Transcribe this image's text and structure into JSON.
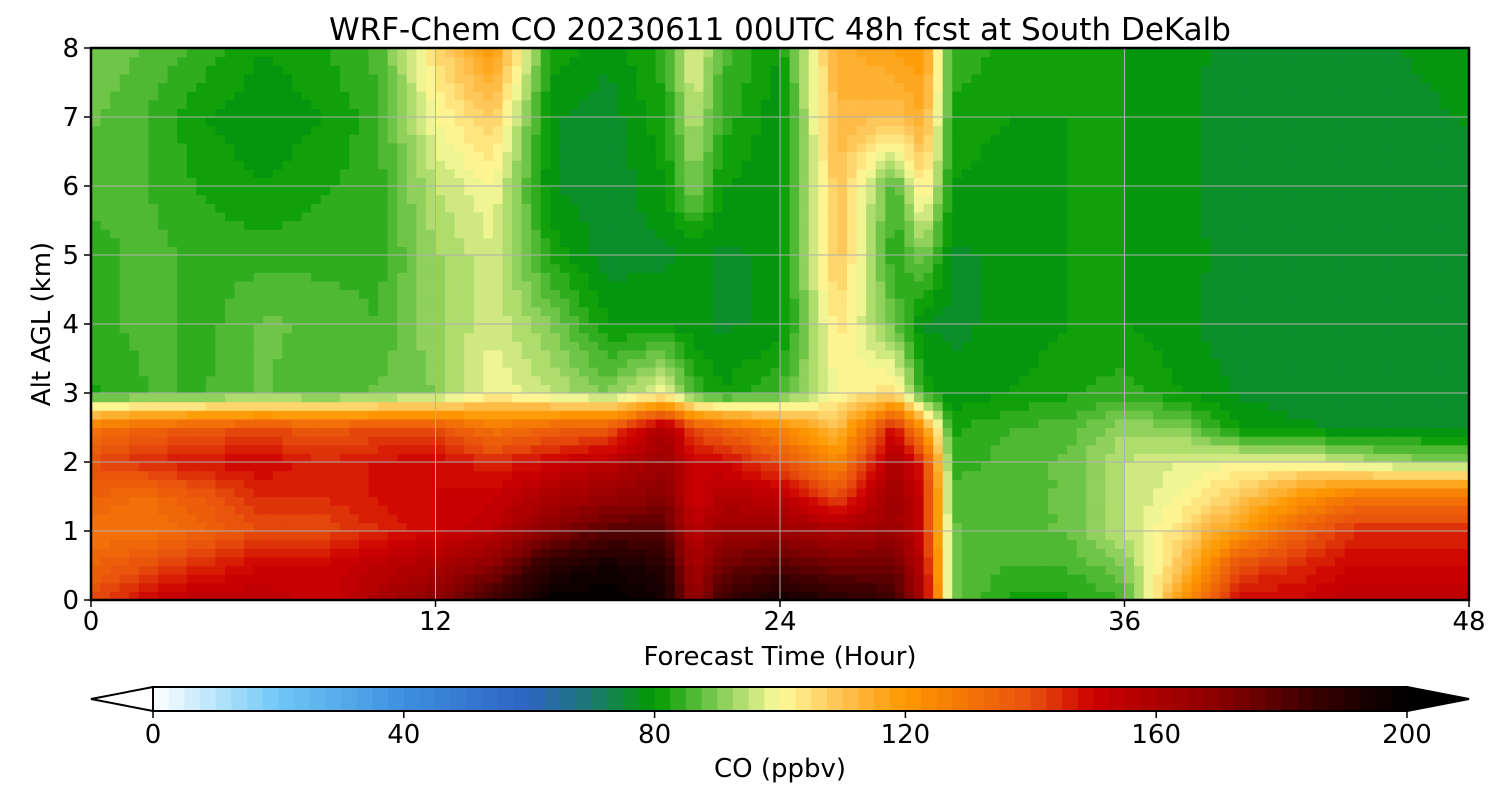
{
  "chart_data": {
    "type": "heatmap",
    "title": "WRF-Chem CO  20230611 00UTC 48h fcst at South DeKalb",
    "xlabel": "Forecast Time (Hour)",
    "ylabel": "Alt AGL (km)",
    "xlim": [
      0,
      48
    ],
    "ylim": [
      0,
      8
    ],
    "xticks": [
      0,
      12,
      24,
      36,
      48
    ],
    "yticks": [
      0,
      1,
      2,
      3,
      4,
      5,
      6,
      7,
      8
    ],
    "grid": true,
    "colorbar": {
      "label": "CO  (ppbv)",
      "range": [
        0,
        200
      ],
      "ticks": [
        0,
        40,
        80,
        120,
        160,
        200
      ],
      "extend": "both",
      "stops": [
        {
          "value": 0,
          "color": "#ffffff"
        },
        {
          "value": 20,
          "color": "#6fc8f5"
        },
        {
          "value": 40,
          "color": "#3d8fe0"
        },
        {
          "value": 60,
          "color": "#2d63c1"
        },
        {
          "value": 70,
          "color": "#1d7a72"
        },
        {
          "value": 80,
          "color": "#009a00"
        },
        {
          "value": 90,
          "color": "#7fcb52"
        },
        {
          "value": 100,
          "color": "#fffb9b"
        },
        {
          "value": 110,
          "color": "#fec04f"
        },
        {
          "value": 120,
          "color": "#fe9800"
        },
        {
          "value": 140,
          "color": "#e8500c"
        },
        {
          "value": 150,
          "color": "#cc0000"
        },
        {
          "value": 170,
          "color": "#8a0000"
        },
        {
          "value": 185,
          "color": "#3a0000"
        },
        {
          "value": 200,
          "color": "#000000"
        }
      ]
    },
    "grid_x_hours": [
      0,
      2,
      4,
      6,
      8,
      10,
      12,
      14,
      16,
      18,
      20,
      21,
      22,
      24,
      26,
      28,
      29,
      30,
      32,
      34,
      36,
      38,
      40,
      42,
      44,
      46,
      48
    ],
    "grid_y_km": [
      0,
      0.5,
      1,
      1.5,
      2,
      2.5,
      3,
      4,
      5,
      6,
      7,
      8
    ],
    "values_ppbv": [
      [
        140,
        150,
        155,
        155,
        150,
        160,
        170,
        185,
        200,
        200,
        195,
        165,
        185,
        195,
        190,
        185,
        160,
        88,
        82,
        82,
        85,
        120,
        150,
        150,
        155,
        155,
        155
      ],
      [
        135,
        140,
        145,
        150,
        150,
        155,
        160,
        170,
        190,
        195,
        190,
        160,
        175,
        180,
        175,
        175,
        155,
        88,
        85,
        85,
        90,
        110,
        140,
        145,
        150,
        150,
        150
      ],
      [
        130,
        130,
        135,
        140,
        140,
        145,
        150,
        155,
        170,
        180,
        180,
        155,
        165,
        165,
        160,
        165,
        150,
        88,
        86,
        88,
        95,
        105,
        120,
        135,
        145,
        145,
        145
      ],
      [
        135,
        132,
        138,
        145,
        145,
        148,
        150,
        152,
        160,
        165,
        170,
        150,
        158,
        155,
        140,
        165,
        150,
        86,
        86,
        88,
        95,
        100,
        108,
        120,
        130,
        130,
        130
      ],
      [
        140,
        145,
        148,
        150,
        145,
        148,
        150,
        145,
        150,
        155,
        165,
        150,
        150,
        140,
        125,
        160,
        145,
        84,
        86,
        88,
        95,
        98,
        100,
        100,
        95,
        92,
        90
      ],
      [
        130,
        135,
        138,
        140,
        138,
        140,
        140,
        130,
        135,
        138,
        160,
        140,
        135,
        125,
        110,
        150,
        120,
        82,
        85,
        86,
        92,
        90,
        80,
        78,
        77,
        77,
        77
      ],
      [
        82,
        85,
        85,
        88,
        85,
        88,
        90,
        100,
        95,
        90,
        100,
        85,
        80,
        85,
        100,
        105,
        82,
        78,
        80,
        82,
        84,
        80,
        77,
        76,
        76,
        76,
        76
      ],
      [
        84,
        86,
        84,
        88,
        87,
        85,
        92,
        97,
        90,
        80,
        80,
        78,
        77,
        78,
        104,
        88,
        77,
        77,
        78,
        80,
        80,
        78,
        76,
        76,
        76,
        76,
        76
      ],
      [
        84,
        86,
        84,
        84,
        84,
        84,
        92,
        97,
        82,
        76,
        77,
        78,
        77,
        78,
        110,
        82,
        90,
        77,
        78,
        80,
        80,
        78,
        77,
        76,
        76,
        76,
        76
      ],
      [
        86,
        85,
        82,
        80,
        82,
        84,
        95,
        100,
        78,
        75,
        80,
        90,
        80,
        78,
        110,
        85,
        105,
        80,
        78,
        80,
        80,
        78,
        76,
        76,
        76,
        76,
        76
      ],
      [
        88,
        85,
        80,
        78,
        80,
        84,
        100,
        108,
        78,
        76,
        82,
        95,
        84,
        78,
        112,
        110,
        115,
        82,
        80,
        80,
        80,
        78,
        76,
        76,
        76,
        76,
        78
      ],
      [
        90,
        87,
        84,
        80,
        82,
        86,
        105,
        120,
        82,
        78,
        84,
        100,
        86,
        80,
        114,
        118,
        120,
        84,
        82,
        80,
        80,
        78,
        77,
        76,
        76,
        78,
        80
      ]
    ]
  }
}
